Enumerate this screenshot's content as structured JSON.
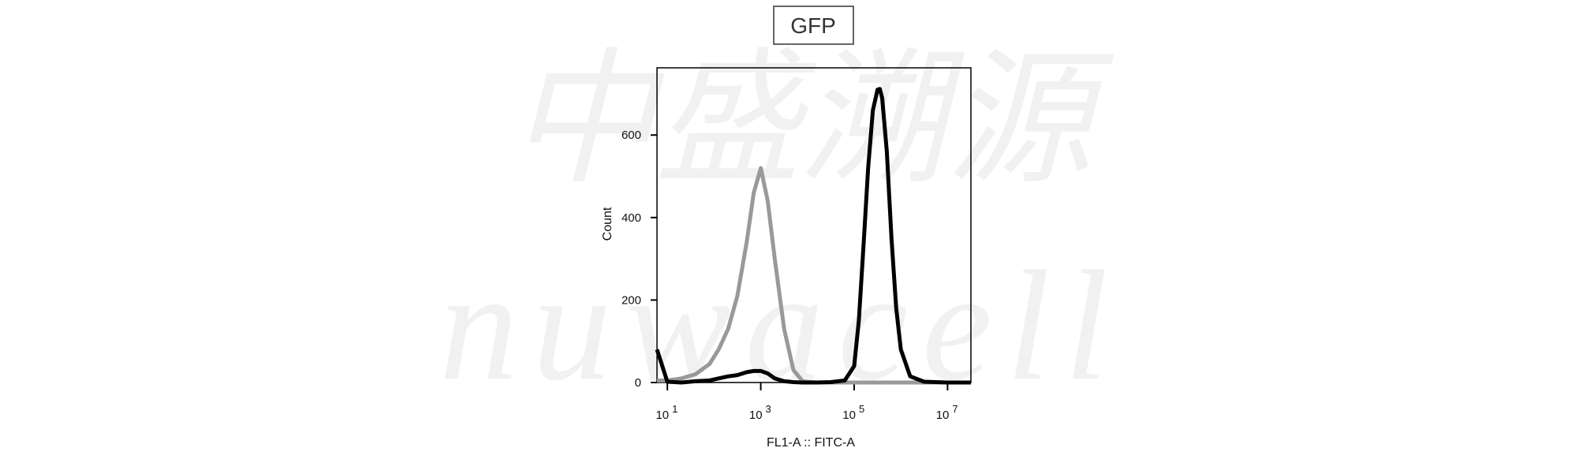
{
  "chart_data": {
    "type": "line",
    "title": "GFP",
    "watermark": [
      "中盛溯源",
      "nuwacell"
    ],
    "xlabel": "FL1-A :: FITC-A",
    "ylabel": "Count",
    "xscale": "log",
    "x": [
      6,
      10,
      20,
      40,
      80,
      125,
      200,
      316,
      500,
      708,
      1000,
      1413,
      1995,
      3162,
      5012,
      7943,
      15849,
      31623,
      63096,
      100000,
      125893,
      158489,
      199526,
      251189,
      316228,
      354813,
      398107,
      501187,
      630957,
      794328,
      1000000,
      1584893,
      3162278,
      10000000,
      31622777
    ],
    "series": [
      {
        "color": "#999999",
        "values": [
          5,
          5,
          10,
          20,
          45,
          80,
          130,
          210,
          340,
          460,
          520,
          440,
          300,
          130,
          30,
          3,
          0,
          0,
          0,
          0,
          0,
          0,
          0,
          0,
          0,
          0,
          0,
          0,
          0,
          0,
          0,
          0,
          0,
          0,
          0
        ]
      },
      {
        "color": "#000000",
        "values": [
          80,
          2,
          0,
          3,
          5,
          10,
          15,
          18,
          25,
          28,
          28,
          22,
          10,
          3,
          1,
          0,
          0,
          1,
          5,
          40,
          150,
          330,
          520,
          660,
          710,
          712,
          690,
          560,
          350,
          180,
          80,
          15,
          2,
          0,
          0
        ]
      }
    ],
    "xlim": [
      6,
      31622777
    ],
    "xticks": [
      {
        "value": 10,
        "label": "10",
        "exponent": "1"
      },
      {
        "value": 1000,
        "label": "10",
        "exponent": "3"
      },
      {
        "value": 100000,
        "label": "10",
        "exponent": "5"
      },
      {
        "value": 10000000,
        "label": "10",
        "exponent": "7"
      }
    ],
    "ylim": [
      0,
      763
    ],
    "yticks": [
      0,
      200,
      400,
      600
    ]
  }
}
